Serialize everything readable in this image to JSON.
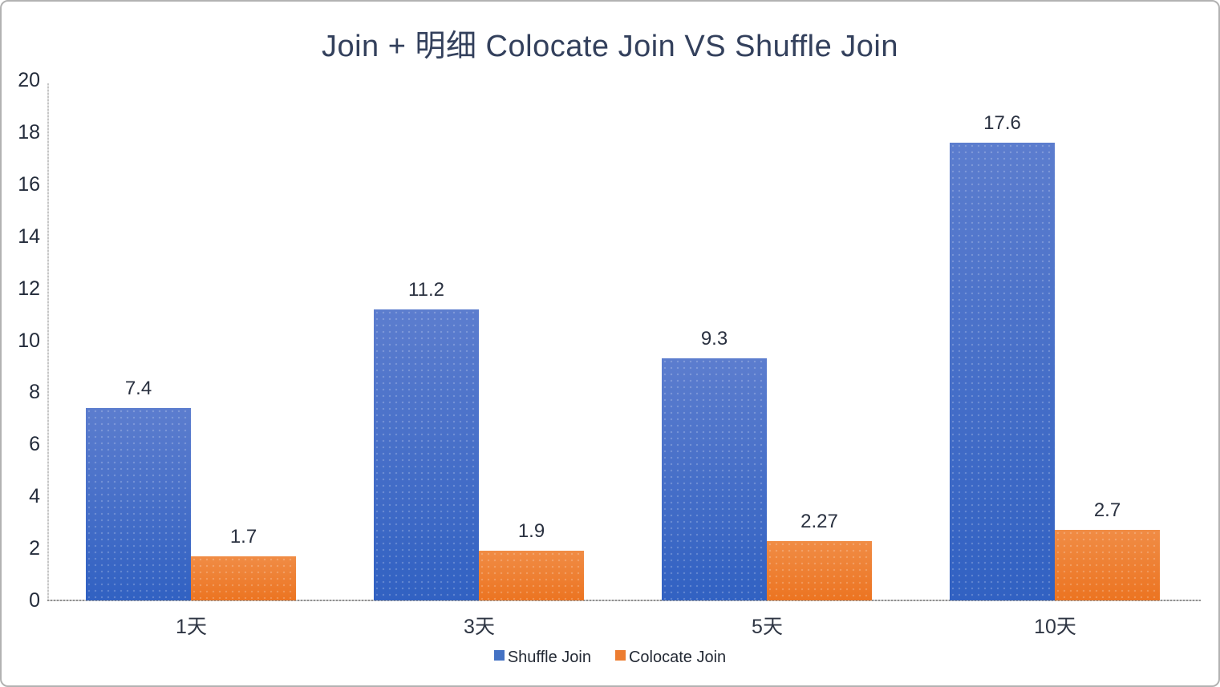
{
  "chart_data": {
    "type": "bar",
    "title": "Join + 明细 Colocate Join VS Shuffle Join",
    "title_color": "#33405c",
    "categories": [
      "1天",
      "3天",
      "5天",
      "10天"
    ],
    "series": [
      {
        "name": "Shuffle Join",
        "values": [
          7.4,
          11.2,
          9.3,
          17.6
        ],
        "labels": [
          "7.4",
          "11.2",
          "9.3",
          "17.6"
        ],
        "color_top": "#5c7dce",
        "color_bottom": "#3161c2",
        "legend_color": "#4472c4"
      },
      {
        "name": "Colocate Join",
        "values": [
          1.7,
          1.9,
          2.27,
          2.7
        ],
        "labels": [
          "1.7",
          "1.9",
          "2.27",
          "2.7"
        ],
        "color_top": "#f08c45",
        "color_bottom": "#ec7421",
        "legend_color": "#ed7d31"
      }
    ],
    "xlabel": "",
    "ylabel": "",
    "ylim": [
      0,
      20
    ],
    "yticks": [
      0,
      2,
      4,
      6,
      8,
      10,
      12,
      14,
      16,
      18,
      20
    ],
    "grid": false,
    "legend_position": "bottom"
  }
}
